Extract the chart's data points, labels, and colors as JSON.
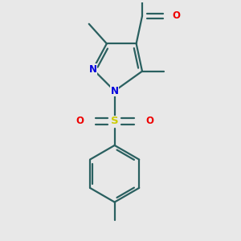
{
  "background_color": "#e8e8e8",
  "bond_color": "#2a6060",
  "N_color": "#0000dd",
  "O_color": "#ee0000",
  "S_color": "#cccc00",
  "lw": 1.6,
  "figsize": [
    3.0,
    3.0
  ],
  "dpi": 100,
  "xlim": [
    -1.5,
    1.5
  ],
  "ylim": [
    -3.2,
    2.8
  ]
}
